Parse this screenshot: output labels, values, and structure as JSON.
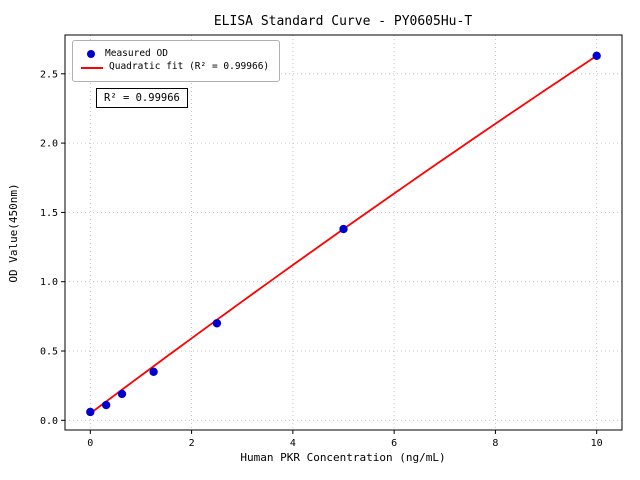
{
  "chart_data": {
    "type": "scatter",
    "title": "ELISA Standard Curve - PY0605Hu-T",
    "xlabel": "Human PKR Concentration (ng/mL)",
    "ylabel": "OD Value(450nm)",
    "xlim": [
      -0.5,
      10.5
    ],
    "ylim": [
      -0.07,
      2.78
    ],
    "xticks": [
      0,
      2,
      4,
      6,
      8,
      10
    ],
    "xtick_labels": [
      "0",
      "2",
      "4",
      "6",
      "8",
      "10"
    ],
    "yticks": [
      0.0,
      0.5,
      1.0,
      1.5,
      2.0,
      2.5
    ],
    "ytick_labels": [
      "0.0",
      "0.5",
      "1.0",
      "1.5",
      "2.0",
      "2.5"
    ],
    "grid": true,
    "legend_position": "upper left",
    "annotation": "R² = 0.99966",
    "series": [
      {
        "name": "Measured OD",
        "type": "scatter",
        "color": "#0000cd",
        "x": [
          0,
          0.313,
          0.625,
          1.25,
          2.5,
          5,
          10
        ],
        "y": [
          0.06,
          0.11,
          0.19,
          0.35,
          0.7,
          1.38,
          2.63
        ]
      },
      {
        "name": "Quadratic fit (R² = 0.99966)",
        "type": "line",
        "color": "#ff0000",
        "coeffs": {
          "a": -0.0016,
          "b": 0.274,
          "c": 0.05
        },
        "x_range": [
          0,
          10
        ]
      }
    ]
  }
}
